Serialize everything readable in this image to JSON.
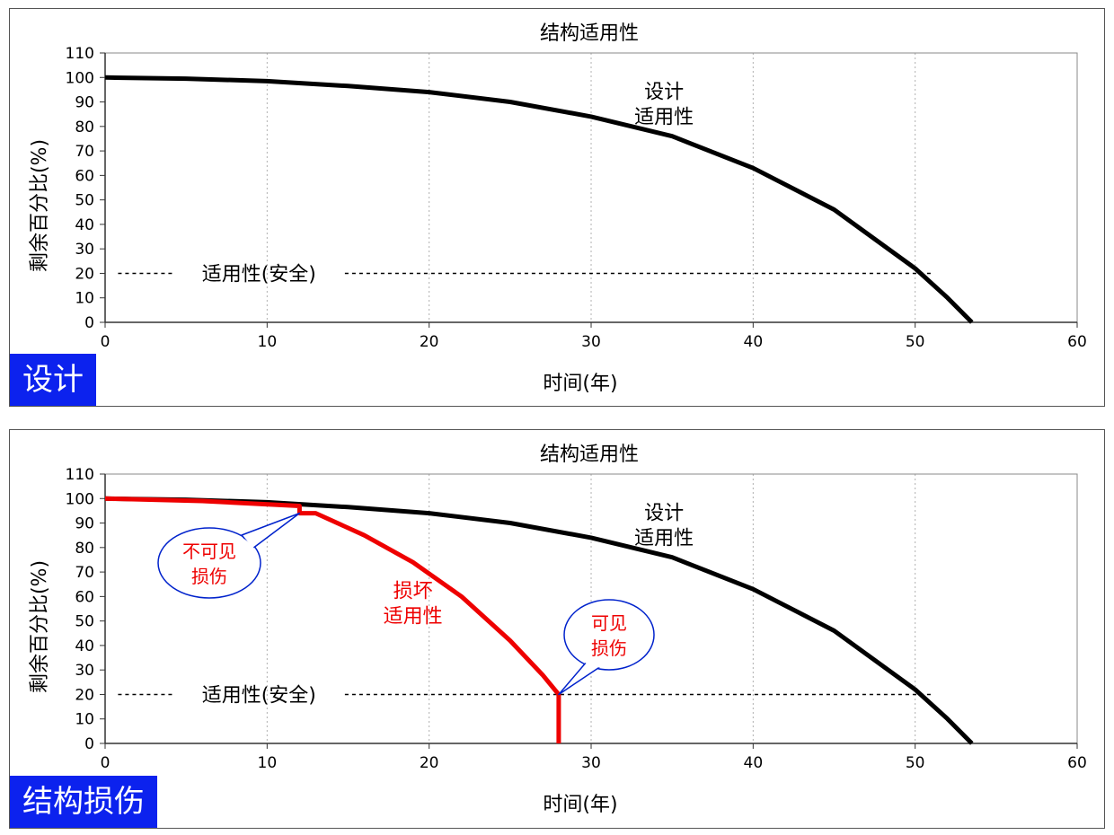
{
  "chart_data": [
    {
      "type": "line",
      "title": "结构适用性",
      "xlabel": "时间(年)",
      "ylabel": "剩余百分比(%)",
      "xlim": [
        0,
        60
      ],
      "ylim": [
        0,
        110
      ],
      "xticks": [
        0,
        10,
        20,
        30,
        40,
        50,
        60
      ],
      "yticks": [
        0,
        10,
        20,
        30,
        40,
        50,
        60,
        70,
        80,
        90,
        100,
        110
      ],
      "grid": "vertical-dotted",
      "badge": "设计",
      "threshold": {
        "y": 20,
        "label": "适用性(安全)",
        "x_start": 0,
        "x_end": 51
      },
      "series": [
        {
          "name": "设计\n适用性",
          "label_lines": [
            "设计",
            "适用性"
          ],
          "color": "#000000",
          "x": [
            0,
            5,
            10,
            15,
            20,
            25,
            30,
            35,
            40,
            45,
            50,
            52,
            53.5
          ],
          "y": [
            100,
            99.5,
            98.5,
            96.5,
            94,
            90,
            84,
            76,
            63,
            46,
            22,
            10,
            0
          ]
        }
      ]
    },
    {
      "type": "line",
      "title": "结构适用性",
      "xlabel": "时间(年)",
      "ylabel": "剩余百分比(%)",
      "xlim": [
        0,
        60
      ],
      "ylim": [
        0,
        110
      ],
      "xticks": [
        0,
        10,
        20,
        30,
        40,
        50,
        60
      ],
      "yticks": [
        0,
        10,
        20,
        30,
        40,
        50,
        60,
        70,
        80,
        90,
        100,
        110
      ],
      "grid": "vertical-dotted",
      "badge": "结构损伤",
      "threshold": {
        "y": 20,
        "label": "适用性(安全)",
        "x_start": 0,
        "x_end": 51
      },
      "series": [
        {
          "name": "设计\n适用性",
          "label_lines": [
            "设计",
            "适用性"
          ],
          "color": "#000000",
          "x": [
            0,
            5,
            10,
            15,
            20,
            25,
            30,
            35,
            40,
            45,
            50,
            52,
            53.5
          ],
          "y": [
            100,
            99.5,
            98.5,
            96.5,
            94,
            90,
            84,
            76,
            63,
            46,
            22,
            10,
            0
          ]
        },
        {
          "name": "损坏\n适用性",
          "label_lines": [
            "损坏",
            "适用性"
          ],
          "color": "#ee0000",
          "x": [
            0,
            6,
            12,
            12,
            13,
            16,
            19,
            22,
            25,
            27,
            28,
            28
          ],
          "y": [
            100,
            99,
            97,
            94,
            94,
            85,
            74,
            60,
            42,
            28,
            20,
            0
          ]
        }
      ],
      "callouts": [
        {
          "lines": [
            "不可见",
            "损伤"
          ],
          "point": [
            12,
            94
          ],
          "color": "#ee0000"
        },
        {
          "lines": [
            "可见",
            "损伤"
          ],
          "point": [
            28,
            20
          ],
          "color": "#ee0000"
        }
      ]
    }
  ]
}
